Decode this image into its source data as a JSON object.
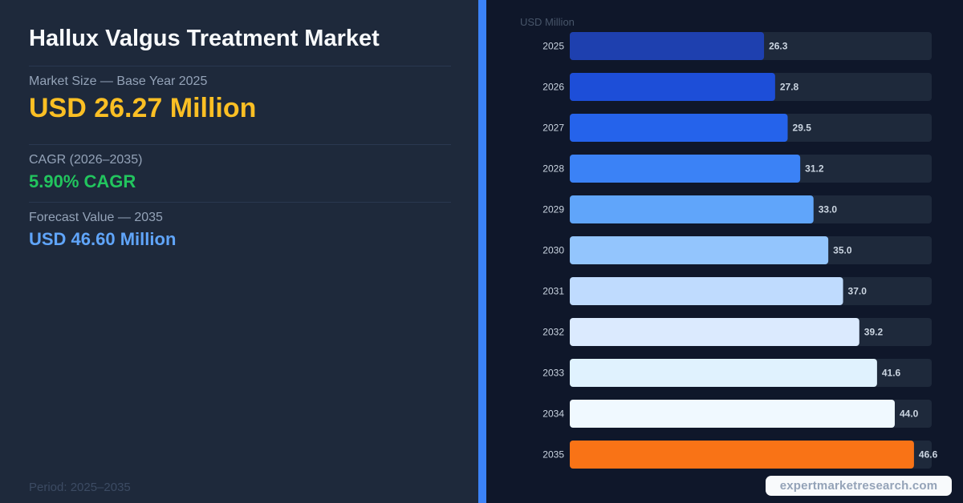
{
  "header": {
    "title": "Hallux Valgus Treatment Market"
  },
  "metrics": {
    "market_size_label": "Market Size — Base Year 2025",
    "market_size_value": "USD 26.27 Million",
    "cagr_label": "CAGR (2026–2035)",
    "cagr_value": "5.90% CAGR",
    "forecast_label": "Forecast Value — 2035",
    "forecast_value": "USD 46.60 Million"
  },
  "footer": {
    "period": "Period: 2025–2035",
    "source": "expertmarketresearch.com"
  },
  "colors": {
    "bars": [
      "#1e40af",
      "#1d4ed8",
      "#2563eb",
      "#3b82f6",
      "#60a5fa",
      "#93c5fd",
      "#bfdbfe",
      "#dbeafe",
      "#e0f2fe",
      "#f0f9ff",
      "#f97316"
    ],
    "track": "#1e293b",
    "label": "#cbd5e1",
    "value_label": "#cbd5e1"
  },
  "chart_data": {
    "type": "bar",
    "orientation": "horizontal",
    "ylabel": "USD Million",
    "categories": [
      "2025",
      "2026",
      "2027",
      "2028",
      "2029",
      "2030",
      "2031",
      "2032",
      "2033",
      "2034",
      "2035"
    ],
    "values": [
      26.3,
      27.8,
      29.5,
      31.2,
      33.0,
      35.0,
      37.0,
      39.2,
      41.6,
      44.0,
      46.6
    ],
    "value_labels": [
      "26.3",
      "27.8",
      "29.5",
      "31.2",
      "33.0",
      "35.0",
      "37.0",
      "39.2",
      "41.6",
      "44.0",
      "46.6"
    ],
    "xlim": [
      0,
      49
    ]
  }
}
